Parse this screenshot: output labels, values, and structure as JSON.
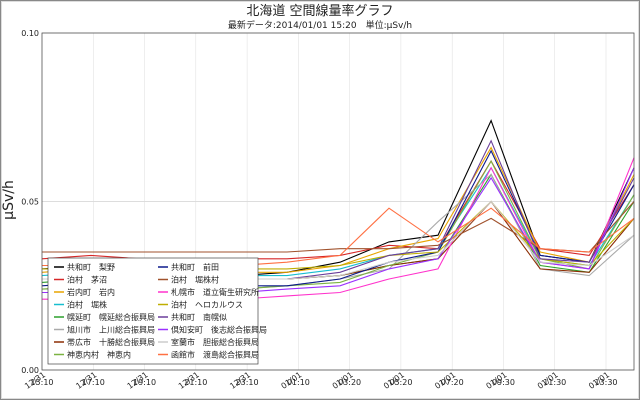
{
  "chart_data": {
    "type": "line",
    "title": "北海道 空間線量率グラフ",
    "subtitle": "最新データ:2014/01/01 15:20　単位:μSv/h",
    "ylabel": "μSv/h",
    "xlabel": "",
    "ylim": [
      0,
      0.1
    ],
    "yticks": [
      "0.00",
      "0.05",
      "0.10"
    ],
    "grid": true,
    "legend_position": "bottom-left",
    "x_range": [
      "2013-12-31 15:10",
      "2014-01-01 15:20"
    ],
    "x_ticks": [
      {
        "date": "12/31",
        "time": "15:10"
      },
      {
        "date": "12/31",
        "time": "17:10"
      },
      {
        "date": "12/31",
        "time": "19:10"
      },
      {
        "date": "12/31",
        "time": "21:10"
      },
      {
        "date": "12/31",
        "time": "23:10"
      },
      {
        "date": "01/01",
        "time": "01:10"
      },
      {
        "date": "01/01",
        "time": "03:20"
      },
      {
        "date": "01/01",
        "time": "05:20"
      },
      {
        "date": "01/01",
        "time": "07:20"
      },
      {
        "date": "01/01",
        "time": "09:30"
      },
      {
        "date": "01/01",
        "time": "11:30"
      },
      {
        "date": "01/01",
        "time": "13:30"
      }
    ],
    "x": [
      15.17,
      17.17,
      19.17,
      21.17,
      23.17,
      25.17,
      27.33,
      29.33,
      31.33,
      33.5,
      35.5,
      37.5,
      39.33
    ],
    "series": [
      {
        "name": "共和町　梨野",
        "color": "#000000",
        "values": [
          0.03,
          0.031,
          0.03,
          0.029,
          0.028,
          0.029,
          0.032,
          0.038,
          0.04,
          0.074,
          0.034,
          0.032,
          0.06
        ]
      },
      {
        "name": "泊村　茅沼",
        "color": "#d62728",
        "values": [
          0.033,
          0.034,
          0.033,
          0.033,
          0.033,
          0.033,
          0.034,
          0.037,
          0.036,
          0.062,
          0.036,
          0.034,
          0.055
        ]
      },
      {
        "name": "岩内町　岩内",
        "color": "#e8a400",
        "values": [
          0.029,
          0.03,
          0.029,
          0.029,
          0.029,
          0.029,
          0.031,
          0.036,
          0.039,
          0.066,
          0.035,
          0.032,
          0.058
        ]
      },
      {
        "name": "泊村　堀株",
        "color": "#17becf",
        "values": [
          0.028,
          0.029,
          0.028,
          0.028,
          0.028,
          0.028,
          0.03,
          0.034,
          0.036,
          0.06,
          0.033,
          0.031,
          0.052
        ]
      },
      {
        "name": "幌延町　幌延総合振興局",
        "color": "#2ca02c",
        "values": [
          0.026,
          0.027,
          0.026,
          0.027,
          0.027,
          0.027,
          0.028,
          0.031,
          0.033,
          0.058,
          0.031,
          0.029,
          0.05
        ]
      },
      {
        "name": "旭川市　上川総合振興局",
        "color": "#aaaaaa",
        "values": [
          0.024,
          0.024,
          0.024,
          0.024,
          0.024,
          0.025,
          0.027,
          0.03,
          0.044,
          0.058,
          0.03,
          0.028,
          0.04
        ]
      },
      {
        "name": "帯広市　十勝総合振興局",
        "color": "#8c2d04",
        "values": [
          0.027,
          0.027,
          0.027,
          0.027,
          0.027,
          0.027,
          0.028,
          0.031,
          0.033,
          0.05,
          0.03,
          0.029,
          0.045
        ]
      },
      {
        "name": "神恵内村　神恵内",
        "color": "#7cb342",
        "values": [
          0.024,
          0.025,
          0.024,
          0.024,
          0.024,
          0.025,
          0.026,
          0.031,
          0.035,
          0.062,
          0.033,
          0.03,
          0.052
        ]
      },
      {
        "name": "共和町　前田",
        "color": "#0d1a8c",
        "values": [
          0.025,
          0.026,
          0.025,
          0.025,
          0.025,
          0.025,
          0.027,
          0.032,
          0.035,
          0.065,
          0.034,
          0.032,
          0.055
        ]
      },
      {
        "name": "泊村　堀株村",
        "color": "#a0522d",
        "values": [
          0.035,
          0.035,
          0.035,
          0.035,
          0.035,
          0.035,
          0.036,
          0.036,
          0.037,
          0.045,
          0.036,
          0.035,
          0.05
        ]
      },
      {
        "name": "札幌市　道立衛生研究所",
        "color": "#ff33cc",
        "values": [
          0.021,
          0.021,
          0.021,
          0.021,
          0.021,
          0.022,
          0.023,
          0.027,
          0.03,
          0.06,
          0.032,
          0.03,
          0.063
        ]
      },
      {
        "name": "泊村　ヘロカルウス",
        "color": "#bfae00",
        "values": [
          0.03,
          0.03,
          0.03,
          0.03,
          0.03,
          0.03,
          0.031,
          0.034,
          0.035,
          0.05,
          0.033,
          0.031,
          0.045
        ]
      },
      {
        "name": "共和町　南幌似",
        "color": "#6a3d9a",
        "values": [
          0.027,
          0.027,
          0.027,
          0.027,
          0.027,
          0.027,
          0.029,
          0.034,
          0.036,
          0.068,
          0.033,
          0.032,
          0.057
        ]
      },
      {
        "name": "倶知安町　後志総合振興局",
        "color": "#9b30ff",
        "values": [
          0.023,
          0.023,
          0.023,
          0.023,
          0.023,
          0.024,
          0.025,
          0.03,
          0.033,
          0.057,
          0.032,
          0.03,
          0.06
        ]
      },
      {
        "name": "室蘭市　胆振総合振興局",
        "color": "#cccccc",
        "values": [
          0.027,
          0.027,
          0.027,
          0.027,
          0.027,
          0.027,
          0.028,
          0.032,
          0.034,
          0.05,
          0.032,
          0.031,
          0.04
        ]
      },
      {
        "name": "函館市　渡島総合振興局",
        "color": "#ff7043",
        "values": [
          0.031,
          0.031,
          0.031,
          0.031,
          0.031,
          0.032,
          0.034,
          0.048,
          0.038,
          0.048,
          0.036,
          0.035,
          0.045
        ]
      }
    ]
  }
}
